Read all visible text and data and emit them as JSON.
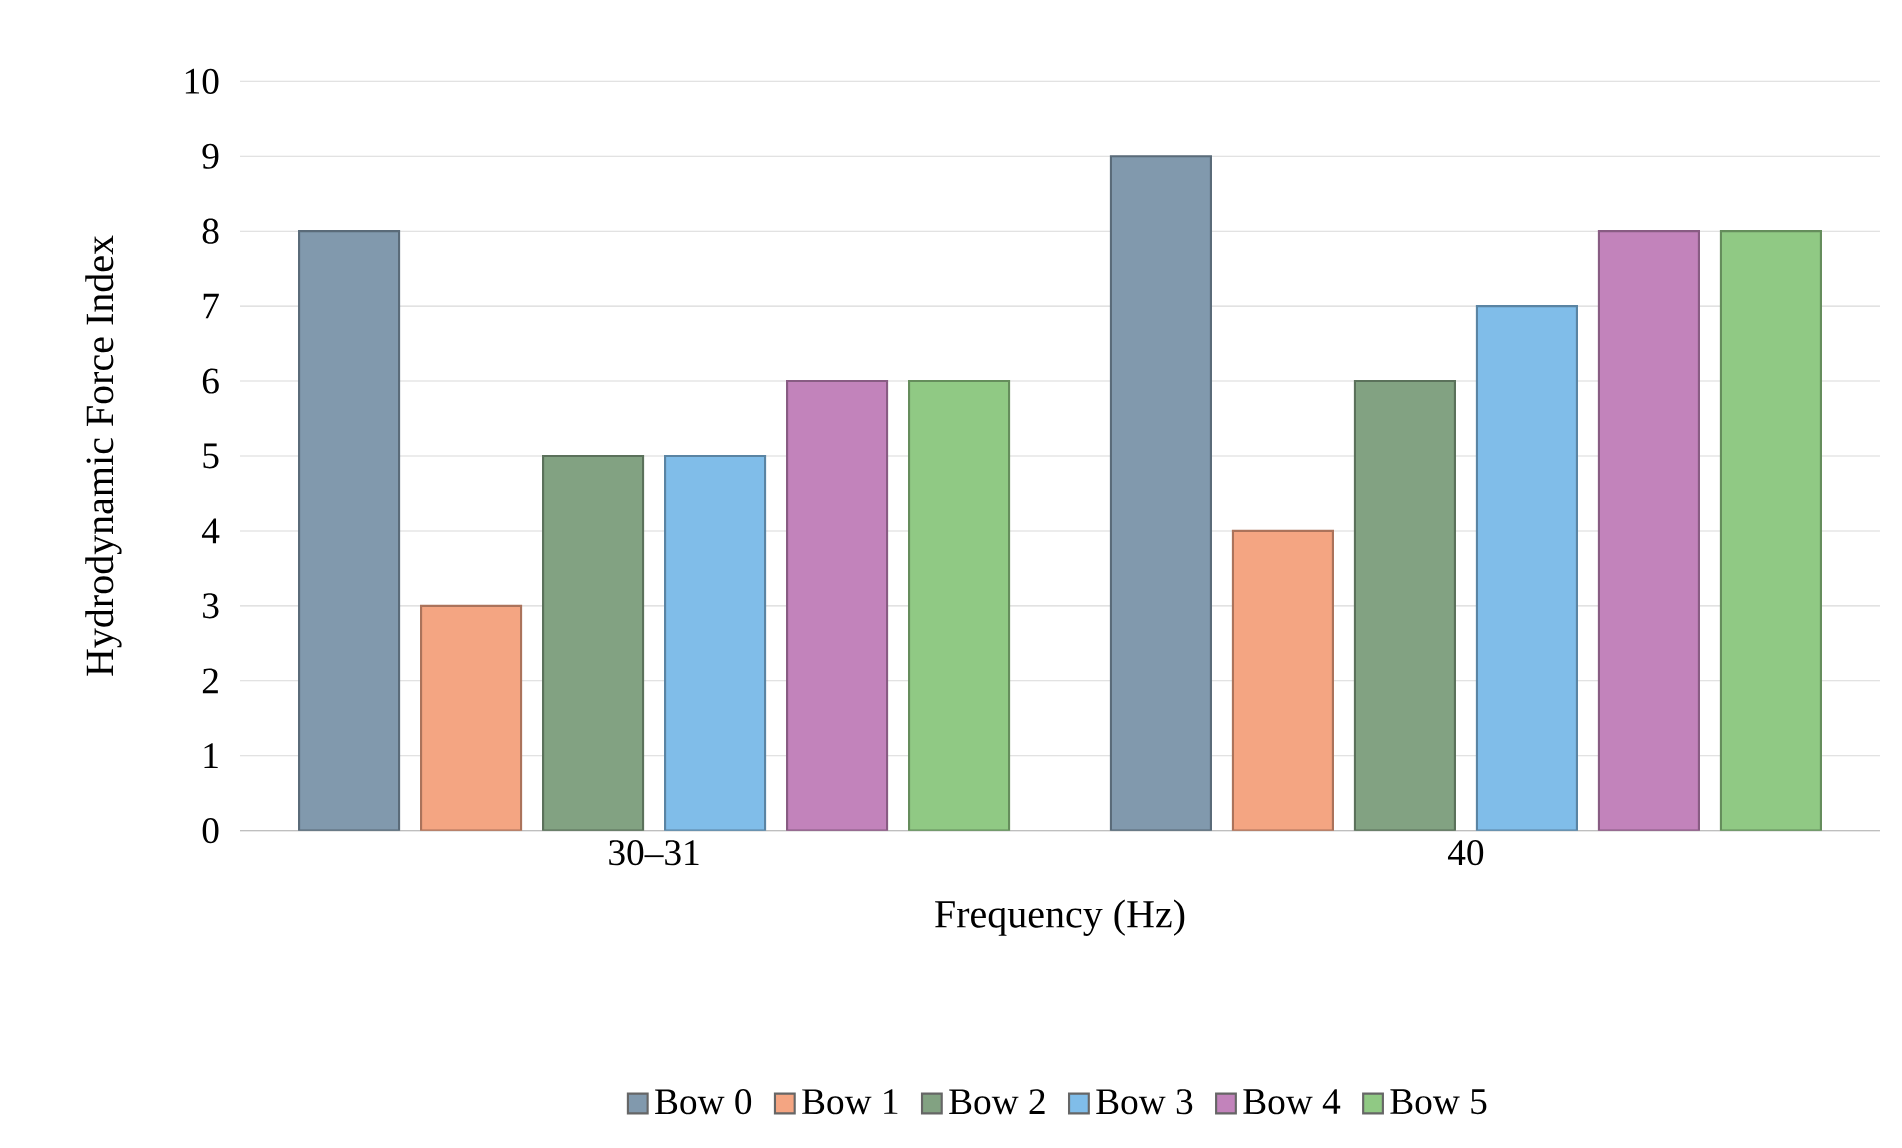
{
  "chart_data": {
    "type": "bar",
    "xlabel": "Frequency (Hz)",
    "ylabel": "Hydrodynamic Force Index",
    "categories": [
      "30–31",
      "40"
    ],
    "series": [
      {
        "name": "Bow 0",
        "color": "#8199ad",
        "values": [
          8,
          9
        ]
      },
      {
        "name": "Bow 1",
        "color": "#f4a582",
        "values": [
          3,
          4
        ]
      },
      {
        "name": "Bow 2",
        "color": "#82a282",
        "values": [
          5,
          6
        ]
      },
      {
        "name": "Bow 3",
        "color": "#80bde9",
        "values": [
          5,
          7
        ]
      },
      {
        "name": "Bow 4",
        "color": "#c283bb",
        "values": [
          6,
          8
        ]
      },
      {
        "name": "Bow 5",
        "color": "#90c984",
        "values": [
          6,
          8
        ]
      }
    ],
    "ylim": [
      0,
      10
    ],
    "yticks": [
      0,
      1,
      2,
      3,
      4,
      5,
      6,
      7,
      8,
      9,
      10
    ],
    "grid": "y",
    "legend": "bottom"
  }
}
